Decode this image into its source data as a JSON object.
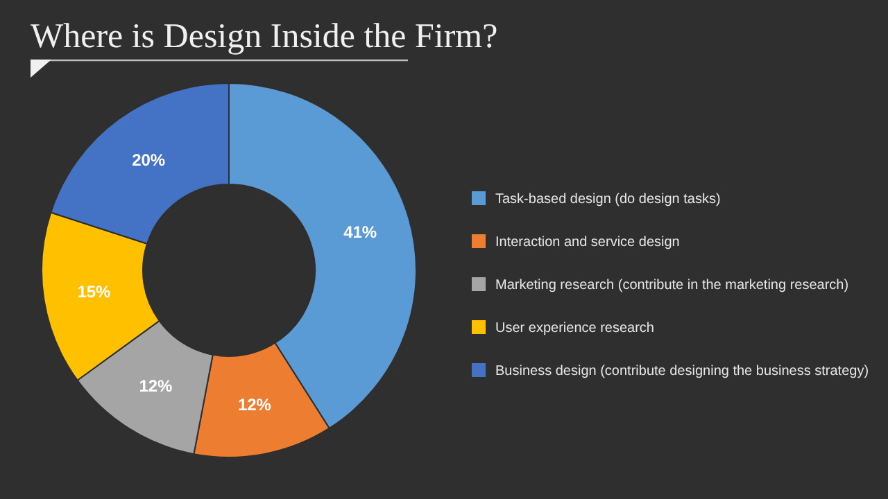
{
  "chart_data": {
    "type": "donut",
    "title": "Where is Design Inside the Firm?",
    "categories": [
      "Task-based design (do design tasks)",
      "Interaction and service design",
      "Marketing research (contribute in the marketing research)",
      "User experience research",
      "Business design (contribute designing the business strategy)"
    ],
    "values": [
      41,
      12,
      12,
      15,
      20
    ],
    "value_labels": [
      "41%",
      "12%",
      "12%",
      "15%",
      "20%"
    ],
    "colors": [
      "#5b9bd5",
      "#ed7d31",
      "#a5a5a5",
      "#ffc000",
      "#4472c4"
    ],
    "legend": "right"
  }
}
